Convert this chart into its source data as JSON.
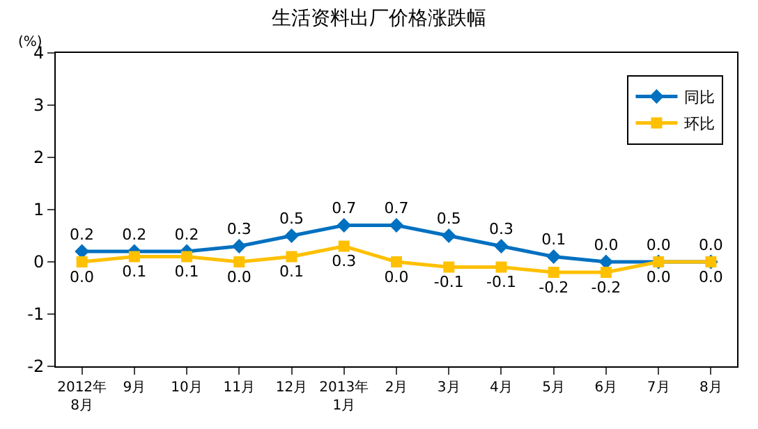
{
  "chart_data": {
    "type": "line",
    "title": "生活资料出厂价格涨跌幅",
    "ylabel": "(%)",
    "categories": [
      "2012年\n8月",
      "9月",
      "10月",
      "11月",
      "12月",
      "2013年\n1月",
      "2月",
      "3月",
      "4月",
      "5月",
      "6月",
      "7月",
      "8月"
    ],
    "series": [
      {
        "name": "同比",
        "color": "#0070c0",
        "marker": "diamond",
        "values": [
          0.2,
          0.2,
          0.2,
          0.3,
          0.5,
          0.7,
          0.7,
          0.5,
          0.3,
          0.1,
          0.0,
          0.0,
          0.0
        ],
        "value_labels": [
          "0.2",
          "0.2",
          "0.2",
          "0.3",
          "0.5",
          "0.7",
          "0.7",
          "0.5",
          "0.3",
          "0.1",
          "0.0",
          "0.0",
          "0.0"
        ]
      },
      {
        "name": "环比",
        "color": "#ffc000",
        "marker": "square",
        "values": [
          0.0,
          0.1,
          0.1,
          0.0,
          0.1,
          0.3,
          0.0,
          -0.1,
          -0.1,
          -0.2,
          -0.2,
          0.0,
          0.0
        ],
        "value_labels": [
          "0.0",
          "0.1",
          "0.1",
          "0.0",
          "0.1",
          "0.3",
          "0.0",
          "-0.1",
          "-0.1",
          "-0.2",
          "-0.2",
          "0.0",
          "0.0"
        ]
      }
    ],
    "ylim": [
      -2,
      4
    ],
    "yticks": [
      -2,
      -1,
      0,
      1,
      2,
      3,
      4
    ],
    "legend": "top right",
    "line_style": "solid"
  }
}
